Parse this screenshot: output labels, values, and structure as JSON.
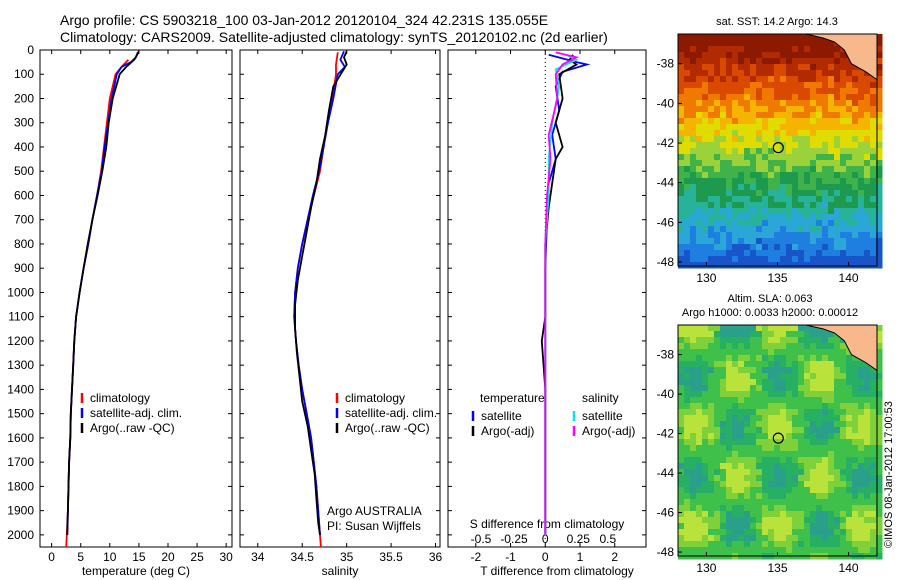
{
  "header": {
    "line1": "Argo profile: CS 5903218_100 03-Jan-2012 20120104_324 42.231S 135.055E",
    "line2": "Climatology: CARS2009. Satellite-adjusted climatology: synTS_20120102.nc (2d earlier)"
  },
  "colors": {
    "climatology": "#ff0000",
    "satellite": "#0000ff",
    "argo": "#000000",
    "salinity_sat": "#00e5ee",
    "salinity_argo": "#ff00ff"
  },
  "stamp": "©IMOS 08-Jan-2012 17:00:53",
  "chart_data": [
    {
      "id": "temperature",
      "type": "line",
      "xlabel": "temperature (deg C)",
      "xlim": [
        -2,
        31
      ],
      "xticks": [
        0,
        5,
        10,
        15,
        20,
        25,
        30
      ],
      "ylim": [
        0,
        2050
      ],
      "yticks": [
        0,
        100,
        200,
        300,
        400,
        500,
        600,
        700,
        800,
        900,
        1000,
        1100,
        1200,
        1300,
        1400,
        1500,
        1600,
        1700,
        1800,
        1900,
        2000
      ],
      "legend": [
        "climatology",
        "satellite-adj. clim.",
        "Argo(..raw -QC)"
      ],
      "series": [
        {
          "name": "climatology",
          "color": "#ff0000",
          "points": [
            [
              13.2,
              40
            ],
            [
              12.0,
              70
            ],
            [
              11.0,
              100
            ],
            [
              10.0,
              200
            ],
            [
              9.5,
              300
            ],
            [
              9.0,
              400
            ],
            [
              8.5,
              500
            ],
            [
              7.8,
              600
            ],
            [
              7.0,
              700
            ],
            [
              6.3,
              800
            ],
            [
              5.5,
              900
            ],
            [
              4.8,
              1000
            ],
            [
              4.2,
              1100
            ],
            [
              3.9,
              1200
            ],
            [
              3.7,
              1300
            ],
            [
              3.5,
              1400
            ],
            [
              3.3,
              1500
            ],
            [
              3.2,
              1600
            ],
            [
              3.0,
              1700
            ],
            [
              2.9,
              1800
            ],
            [
              2.8,
              1900
            ],
            [
              2.6,
              2000
            ],
            [
              2.5,
              2050
            ]
          ]
        },
        {
          "name": "satellite-adj. clim.",
          "color": "#0000ff",
          "points": [
            [
              14.8,
              10
            ],
            [
              14.5,
              30
            ],
            [
              13.6,
              50
            ],
            [
              12.0,
              70
            ],
            [
              11.2,
              100
            ],
            [
              10.3,
              200
            ],
            [
              9.7,
              300
            ],
            [
              9.1,
              400
            ],
            [
              8.6,
              500
            ],
            [
              7.8,
              600
            ],
            [
              7.0,
              700
            ],
            [
              6.3,
              800
            ],
            [
              5.5,
              900
            ],
            [
              4.8,
              1000
            ],
            [
              4.2,
              1100
            ],
            [
              3.9,
              1200
            ],
            [
              3.7,
              1300
            ],
            [
              3.5,
              1400
            ],
            [
              3.3,
              1500
            ],
            [
              3.2,
              1600
            ],
            [
              3.0,
              1700
            ],
            [
              2.9,
              1800
            ],
            [
              2.8,
              1900
            ],
            [
              2.7,
              2000
            ]
          ]
        },
        {
          "name": "Argo(..raw -QC)",
          "color": "#000000",
          "points": [
            [
              15.0,
              5
            ],
            [
              14.8,
              15
            ],
            [
              14.2,
              40
            ],
            [
              12.8,
              70
            ],
            [
              11.7,
              100
            ],
            [
              10.5,
              200
            ],
            [
              9.8,
              300
            ],
            [
              9.4,
              400
            ],
            [
              8.7,
              500
            ],
            [
              7.9,
              600
            ],
            [
              7.0,
              700
            ],
            [
              6.2,
              800
            ],
            [
              5.5,
              900
            ],
            [
              4.8,
              1000
            ],
            [
              4.2,
              1100
            ],
            [
              3.9,
              1200
            ],
            [
              3.7,
              1300
            ],
            [
              3.5,
              1400
            ],
            [
              3.3,
              1500
            ],
            [
              3.2,
              1600
            ],
            [
              3.0,
              1700
            ],
            [
              2.9,
              1800
            ],
            [
              2.8,
              1900
            ],
            [
              2.7,
              2000
            ]
          ]
        }
      ]
    },
    {
      "id": "salinity",
      "type": "line",
      "xlabel": "salinity",
      "xlim": [
        33.8,
        36.05
      ],
      "xticks": [
        34,
        34.5,
        35,
        35.5,
        36
      ],
      "ylim": [
        0,
        2050
      ],
      "legend": [
        "climatology",
        "satellite-adj. clim.",
        "Argo(..raw -QC)"
      ],
      "notes": [
        "Argo AUSTRALIA",
        "PI: Susan Wijffels"
      ],
      "series": [
        {
          "name": "climatology",
          "color": "#ff0000",
          "points": [
            [
              34.9,
              10
            ],
            [
              34.88,
              60
            ],
            [
              34.88,
              100
            ],
            [
              34.84,
              200
            ],
            [
              34.78,
              300
            ],
            [
              34.74,
              400
            ],
            [
              34.7,
              500
            ],
            [
              34.63,
              600
            ],
            [
              34.56,
              700
            ],
            [
              34.5,
              800
            ],
            [
              34.45,
              900
            ],
            [
              34.42,
              1000
            ],
            [
              34.41,
              1100
            ],
            [
              34.43,
              1200
            ],
            [
              34.46,
              1300
            ],
            [
              34.5,
              1400
            ],
            [
              34.55,
              1500
            ],
            [
              34.6,
              1600
            ],
            [
              34.63,
              1700
            ],
            [
              34.66,
              1800
            ],
            [
              34.68,
              1900
            ],
            [
              34.7,
              2000
            ],
            [
              34.71,
              2050
            ]
          ]
        },
        {
          "name": "satellite-adj. clim.",
          "color": "#0000ff",
          "points": [
            [
              34.97,
              5
            ],
            [
              34.93,
              40
            ],
            [
              34.98,
              70
            ],
            [
              34.9,
              100
            ],
            [
              34.85,
              200
            ],
            [
              34.79,
              300
            ],
            [
              34.74,
              400
            ],
            [
              34.69,
              500
            ],
            [
              34.62,
              600
            ],
            [
              34.56,
              700
            ],
            [
              34.5,
              800
            ],
            [
              34.45,
              900
            ],
            [
              34.42,
              1000
            ],
            [
              34.41,
              1100
            ],
            [
              34.43,
              1200
            ],
            [
              34.46,
              1300
            ],
            [
              34.5,
              1400
            ],
            [
              34.55,
              1500
            ],
            [
              34.6,
              1600
            ],
            [
              34.63,
              1700
            ],
            [
              34.66,
              1800
            ],
            [
              34.68,
              1900
            ],
            [
              34.7,
              2000
            ]
          ]
        },
        {
          "name": "Argo(..raw -QC)",
          "color": "#000000",
          "points": [
            [
              35.0,
              5
            ],
            [
              34.97,
              30
            ],
            [
              35.0,
              60
            ],
            [
              34.95,
              90
            ],
            [
              34.85,
              150
            ],
            [
              34.8,
              250
            ],
            [
              34.76,
              350
            ],
            [
              34.7,
              450
            ],
            [
              34.66,
              550
            ],
            [
              34.6,
              650
            ],
            [
              34.55,
              750
            ],
            [
              34.5,
              850
            ],
            [
              34.45,
              950
            ],
            [
              34.42,
              1050
            ],
            [
              34.42,
              1150
            ],
            [
              34.44,
              1250
            ],
            [
              34.47,
              1350
            ],
            [
              34.5,
              1450
            ],
            [
              34.56,
              1550
            ],
            [
              34.6,
              1650
            ],
            [
              34.64,
              1750
            ],
            [
              34.66,
              1850
            ],
            [
              34.68,
              1950
            ],
            [
              34.7,
              2000
            ]
          ]
        }
      ]
    },
    {
      "id": "difference",
      "type": "line",
      "xlabel": "T difference from climatology",
      "toplabel": "S difference from climatology",
      "xlim": [
        -2.8,
        2.9
      ],
      "xticks": [
        -2,
        -1,
        0,
        1,
        2
      ],
      "sticks": [
        [
          "-0.5",
          -1.85
        ],
        [
          "-0.25",
          -0.9
        ],
        [
          "0",
          0
        ],
        [
          "0.25",
          0.95
        ],
        [
          "0.5",
          1.8
        ]
      ],
      "ylim": [
        0,
        2050
      ],
      "legend_left_title": "temperature",
      "legend_left": [
        "satellite",
        "Argo(-adj)"
      ],
      "legend_right_title": "salinity",
      "legend_right": [
        "satellite",
        "Argo(-adj)"
      ],
      "series": [
        {
          "name": "T satellite",
          "color": "#0000ff",
          "points": [
            [
              0.1,
              20
            ],
            [
              0.9,
              50
            ],
            [
              1.2,
              60
            ],
            [
              0.5,
              90
            ],
            [
              0.3,
              150
            ],
            [
              0.4,
              250
            ],
            [
              0.2,
              350
            ],
            [
              0.3,
              450
            ],
            [
              0.1,
              550
            ],
            [
              0.05,
              700
            ],
            [
              0.0,
              900
            ],
            [
              0.0,
              1200
            ],
            [
              0.0,
              1500
            ],
            [
              0.0,
              2000
            ]
          ]
        },
        {
          "name": "T Argo(-adj)",
          "color": "#000000",
          "points": [
            [
              0.8,
              20
            ],
            [
              0.7,
              40
            ],
            [
              0.9,
              60
            ],
            [
              0.4,
              100
            ],
            [
              0.5,
              200
            ],
            [
              0.3,
              300
            ],
            [
              0.5,
              400
            ],
            [
              0.3,
              450
            ],
            [
              0.2,
              550
            ],
            [
              0.1,
              650
            ],
            [
              0.0,
              800
            ],
            [
              0.0,
              1100
            ],
            [
              -0.1,
              1200
            ],
            [
              0.0,
              1400
            ],
            [
              0.0,
              1600
            ],
            [
              0.0,
              2000
            ]
          ]
        },
        {
          "name": "S satellite",
          "color": "#00e5ee",
          "points": [
            [
              0.6,
              20
            ],
            [
              0.9,
              40
            ],
            [
              0.3,
              80
            ],
            [
              0.4,
              150
            ],
            [
              0.2,
              300
            ],
            [
              0.1,
              450
            ],
            [
              0.1,
              600
            ],
            [
              0.0,
              800
            ],
            [
              0.0,
              1000
            ],
            [
              0.0,
              1500
            ],
            [
              0.0,
              2000
            ]
          ]
        },
        {
          "name": "S Argo(-adj)",
          "color": "#ff00ff",
          "points": [
            [
              0.3,
              10
            ],
            [
              0.9,
              30
            ],
            [
              0.5,
              60
            ],
            [
              0.3,
              100
            ],
            [
              0.35,
              200
            ],
            [
              0.1,
              350
            ],
            [
              0.15,
              450
            ],
            [
              0.05,
              600
            ],
            [
              0.0,
              800
            ],
            [
              0.0,
              1000
            ],
            [
              0.0,
              1200
            ],
            [
              0.0,
              2000
            ]
          ]
        }
      ]
    },
    {
      "id": "sst_map",
      "type": "heatmap",
      "title": "sat. SST: 14.2  Argo: 14.3",
      "xticks": [
        130,
        135,
        140
      ],
      "yticks": [
        -38,
        -40,
        -42,
        -44,
        -46,
        -48
      ],
      "xlim": [
        128,
        142
      ],
      "ylim": [
        -48.2,
        -36.5
      ],
      "marker": {
        "lon": 135.055,
        "lat": -42.231
      }
    },
    {
      "id": "sla_map",
      "type": "heatmap",
      "title1": "Altim. SLA: 0.063",
      "title2": "Argo h1000: 0.0033 h2000: 0.00012",
      "xticks": [
        130,
        135,
        140
      ],
      "yticks": [
        -38,
        -40,
        -42,
        -44,
        -46,
        -48
      ],
      "xlim": [
        128,
        142
      ],
      "ylim": [
        -48.2,
        -36.5
      ],
      "marker": {
        "lon": 135.055,
        "lat": -42.231
      }
    }
  ]
}
